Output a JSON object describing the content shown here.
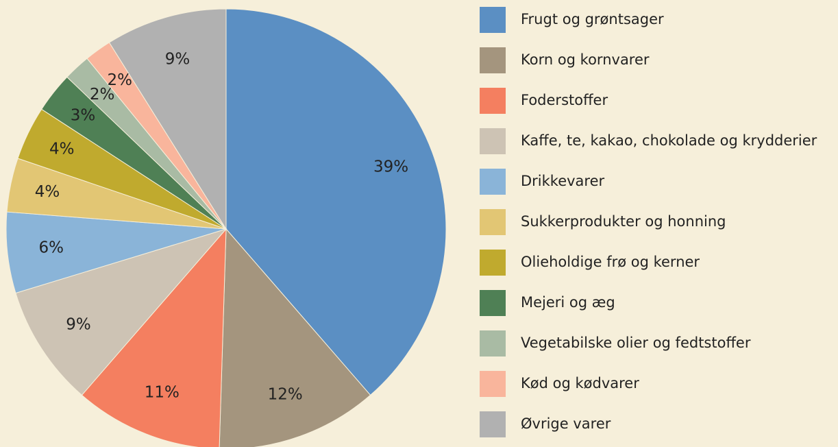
{
  "chart_data": {
    "type": "pie",
    "categories": [
      "Frugt og grøntsager",
      "Korn og kornvarer",
      "Foderstoffer",
      "Kaffe, te, kakao, chokolade og krydderier",
      "Drikkevarer",
      "Sukkerprodukter og honning",
      "Olieholdige frø og kerner",
      "Mejeri og æg",
      "Vegetabilske olier og fedtstoffer",
      "Kød og kødvarer",
      "Øvrige varer"
    ],
    "values": [
      39,
      12,
      11,
      9,
      6,
      4,
      4,
      3,
      2,
      2,
      9
    ],
    "value_labels": [
      "39%",
      "12%",
      "11%",
      "9%",
      "6%",
      "4%",
      "4%",
      "3%",
      "2%",
      "2%",
      "9%"
    ],
    "colors": [
      "#5b8fc3",
      "#a4957e",
      "#f47f60",
      "#cdc3b4",
      "#8ab4d8",
      "#e2c674",
      "#c0aa2e",
      "#4f8055",
      "#a9bba4",
      "#f9b59c",
      "#b1b1b1"
    ],
    "legend": "right"
  }
}
